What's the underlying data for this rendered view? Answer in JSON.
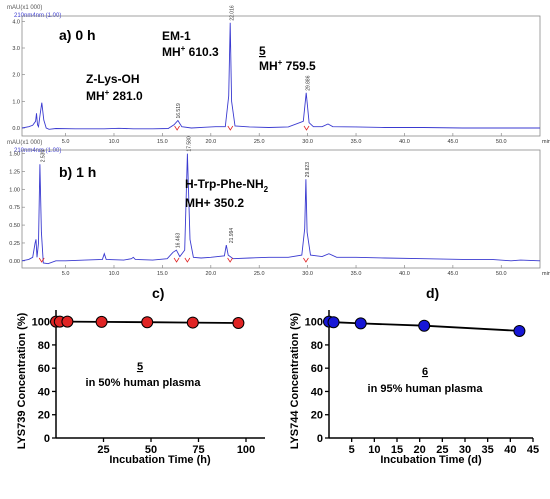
{
  "chart_data": [
    {
      "type": "line",
      "panel": "a) 0 h",
      "y_unit": "mAU(x1 000)",
      "channel": "210nm4nm (1.00)",
      "xlabel": "min",
      "ylim": [
        -0.3,
        4.2
      ],
      "xlim": [
        0.5,
        54
      ],
      "x_ticks": [
        5.0,
        10.0,
        15.0,
        20.0,
        25.0,
        30.0,
        35.0,
        40.0,
        45.0,
        50.0
      ],
      "x_tick_labels": [
        "5.0",
        "10.0",
        "15.0",
        "20.0",
        "25.0",
        "30.0",
        "35.0",
        "40.0",
        "45.0",
        "50.0"
      ],
      "y_ticks": [
        0,
        1,
        2,
        3,
        4
      ],
      "y_tick_labels": [
        "0.0",
        "1.0",
        "2.0",
        "3.0",
        "4.0"
      ],
      "trace": [
        [
          0.5,
          0.0
        ],
        [
          1.2,
          0.05
        ],
        [
          1.6,
          0.1
        ],
        [
          1.9,
          0.25
        ],
        [
          2.0,
          0.55
        ],
        [
          2.1,
          0.12
        ],
        [
          2.2,
          0.05
        ],
        [
          2.35,
          0.45
        ],
        [
          2.55,
          0.95
        ],
        [
          2.75,
          0.3
        ],
        [
          3.0,
          0.0
        ],
        [
          3.3,
          -0.05
        ],
        [
          4,
          -0.02
        ],
        [
          6,
          -0.03
        ],
        [
          9,
          -0.03
        ],
        [
          10.5,
          -0.01
        ],
        [
          12,
          -0.03
        ],
        [
          14,
          -0.03
        ],
        [
          15.6,
          -0.02
        ],
        [
          16.2,
          0.12
        ],
        [
          16.6,
          0.28
        ],
        [
          17.0,
          0.05
        ],
        [
          18,
          0.0
        ],
        [
          19.5,
          0.03
        ],
        [
          20.5,
          0.05
        ],
        [
          21.5,
          0.05
        ],
        [
          21.85,
          1.2
        ],
        [
          22.0,
          3.95
        ],
        [
          22.15,
          1.0
        ],
        [
          22.5,
          0.08
        ],
        [
          24,
          0.04
        ],
        [
          26,
          0.02
        ],
        [
          28,
          0.04
        ],
        [
          29.55,
          0.25
        ],
        [
          29.85,
          1.32
        ],
        [
          30.15,
          0.2
        ],
        [
          30.6,
          0.05
        ],
        [
          31.5,
          0.05
        ],
        [
          32.1,
          0.15
        ],
        [
          32.6,
          0.05
        ],
        [
          35,
          0.04
        ],
        [
          38,
          0.02
        ],
        [
          42,
          0.02
        ],
        [
          46,
          0.0
        ],
        [
          50,
          0.0
        ],
        [
          54,
          0.0
        ]
      ],
      "peaks": [
        {
          "rt": 16.519,
          "label": "16.519"
        },
        {
          "rt": 22.016,
          "label": "22.016"
        },
        {
          "rt": 29.886,
          "label": "29.886"
        }
      ]
    },
    {
      "type": "line",
      "panel": "b) 1 h",
      "y_unit": "mAU(x1 000)",
      "channel": "210nm4nm (1.00)",
      "xlabel": "min",
      "ylim": [
        -0.1,
        1.55
      ],
      "xlim": [
        0.5,
        54
      ],
      "x_ticks": [
        5.0,
        10.0,
        15.0,
        20.0,
        25.0,
        30.0,
        35.0,
        40.0,
        45.0,
        50.0
      ],
      "x_tick_labels": [
        "5.0",
        "10.0",
        "15.0",
        "20.0",
        "25.0",
        "30.0",
        "35.0",
        "40.0",
        "45.0",
        "50.0"
      ],
      "y_ticks": [
        0.0,
        0.25,
        0.5,
        0.75,
        1.0,
        1.25,
        1.5
      ],
      "y_tick_labels": [
        "0.00",
        "0.25",
        "0.50",
        "0.75",
        "1.00",
        "1.25",
        "1.50"
      ],
      "trace": [
        [
          0.5,
          0.0
        ],
        [
          1.2,
          0.02
        ],
        [
          1.6,
          0.05
        ],
        [
          1.85,
          0.25
        ],
        [
          1.95,
          0.3
        ],
        [
          2.05,
          0.05
        ],
        [
          2.2,
          0.25
        ],
        [
          2.35,
          1.35
        ],
        [
          2.5,
          0.4
        ],
        [
          2.7,
          -0.03
        ],
        [
          3.2,
          -0.04
        ],
        [
          4,
          0.0
        ],
        [
          5,
          0.0
        ],
        [
          7,
          0.01
        ],
        [
          8.8,
          0.02
        ],
        [
          9.0,
          0.1
        ],
        [
          9.2,
          0.02
        ],
        [
          11,
          0.01
        ],
        [
          11.8,
          0.03
        ],
        [
          12,
          0.05
        ],
        [
          12.2,
          0.02
        ],
        [
          14,
          0.01
        ],
        [
          15.5,
          0.03
        ],
        [
          16.1,
          0.12
        ],
        [
          16.45,
          0.15
        ],
        [
          16.8,
          0.06
        ],
        [
          17.3,
          0.15
        ],
        [
          17.58,
          1.5
        ],
        [
          17.85,
          0.3
        ],
        [
          18.2,
          0.05
        ],
        [
          19,
          0.04
        ],
        [
          20,
          0.05
        ],
        [
          21.4,
          0.07
        ],
        [
          21.6,
          0.22
        ],
        [
          21.8,
          0.08
        ],
        [
          22.3,
          0.03
        ],
        [
          24,
          0.04
        ],
        [
          26,
          0.05
        ],
        [
          28,
          0.05
        ],
        [
          29.4,
          0.08
        ],
        [
          29.7,
          0.45
        ],
        [
          29.82,
          1.14
        ],
        [
          29.95,
          0.4
        ],
        [
          30.3,
          0.08
        ],
        [
          31.5,
          0.06
        ],
        [
          32.2,
          0.1
        ],
        [
          33,
          0.05
        ],
        [
          35,
          0.05
        ],
        [
          38,
          0.04
        ],
        [
          42,
          0.03
        ],
        [
          46,
          0.02
        ],
        [
          49,
          0.02
        ],
        [
          51,
          0.0
        ],
        [
          52,
          0.01
        ],
        [
          54,
          0.0
        ]
      ],
      "peaks": [
        {
          "rt": 2.535,
          "label": "2.535"
        },
        {
          "rt": 16.463,
          "label": "16.463"
        },
        {
          "rt": 17.58,
          "label": "17.580"
        },
        {
          "rt": 21.994,
          "label": "21.994"
        },
        {
          "rt": 29.823,
          "label": "29.823"
        }
      ]
    },
    {
      "type": "scatter",
      "panel": "c)",
      "title": "5",
      "subtitle": "in 50% human plasma",
      "xlabel": "Incubation Time (h)",
      "ylabel": "LYS739 Concentration (%)",
      "xlim": [
        0,
        110
      ],
      "ylim": [
        0,
        110
      ],
      "x_ticks": [
        25,
        50,
        75,
        100
      ],
      "y_ticks": [
        0,
        20,
        40,
        60,
        80,
        100
      ],
      "x": [
        0,
        2,
        6,
        24,
        48,
        72,
        96
      ],
      "y": [
        100,
        100,
        100,
        99.8,
        99.5,
        99.2,
        98.8
      ]
    },
    {
      "type": "scatter",
      "panel": "d)",
      "title": "6",
      "subtitle": "in 95% human plasma",
      "xlabel": "Incubation Time (d)",
      "ylabel": "LYS744 Concentration (%)",
      "xlim": [
        0,
        45
      ],
      "ylim": [
        0,
        110
      ],
      "x_ticks": [
        5,
        10,
        15,
        20,
        25,
        30,
        35,
        40,
        45
      ],
      "y_ticks": [
        0,
        20,
        40,
        60,
        80,
        100
      ],
      "x": [
        0,
        1,
        7,
        21,
        42
      ],
      "y": [
        100,
        99.5,
        98.5,
        96.5,
        92
      ]
    }
  ],
  "annotations": {
    "a": {
      "em1": "EM-1",
      "em1_mh": "MH",
      "em1_mass": " 610.3",
      "c5": "5",
      "c5_mh": "MH",
      "c5_mass": " 759.5",
      "zlys": "Z-Lys-OH",
      "zlys_mh": "MH",
      "zlys_mass": " 281.0"
    },
    "b": {
      "htrp": "H-Trp-Phe-NH",
      "htrp_sub": "2",
      "htrp_mh": "MH+ 350.2"
    },
    "superscript_plus": "+"
  },
  "colors": {
    "trace": "#3a3ad0",
    "red_marker": "#e02424",
    "blue_marker": "#1717d6",
    "axis_gray": "#6a6a6a"
  }
}
